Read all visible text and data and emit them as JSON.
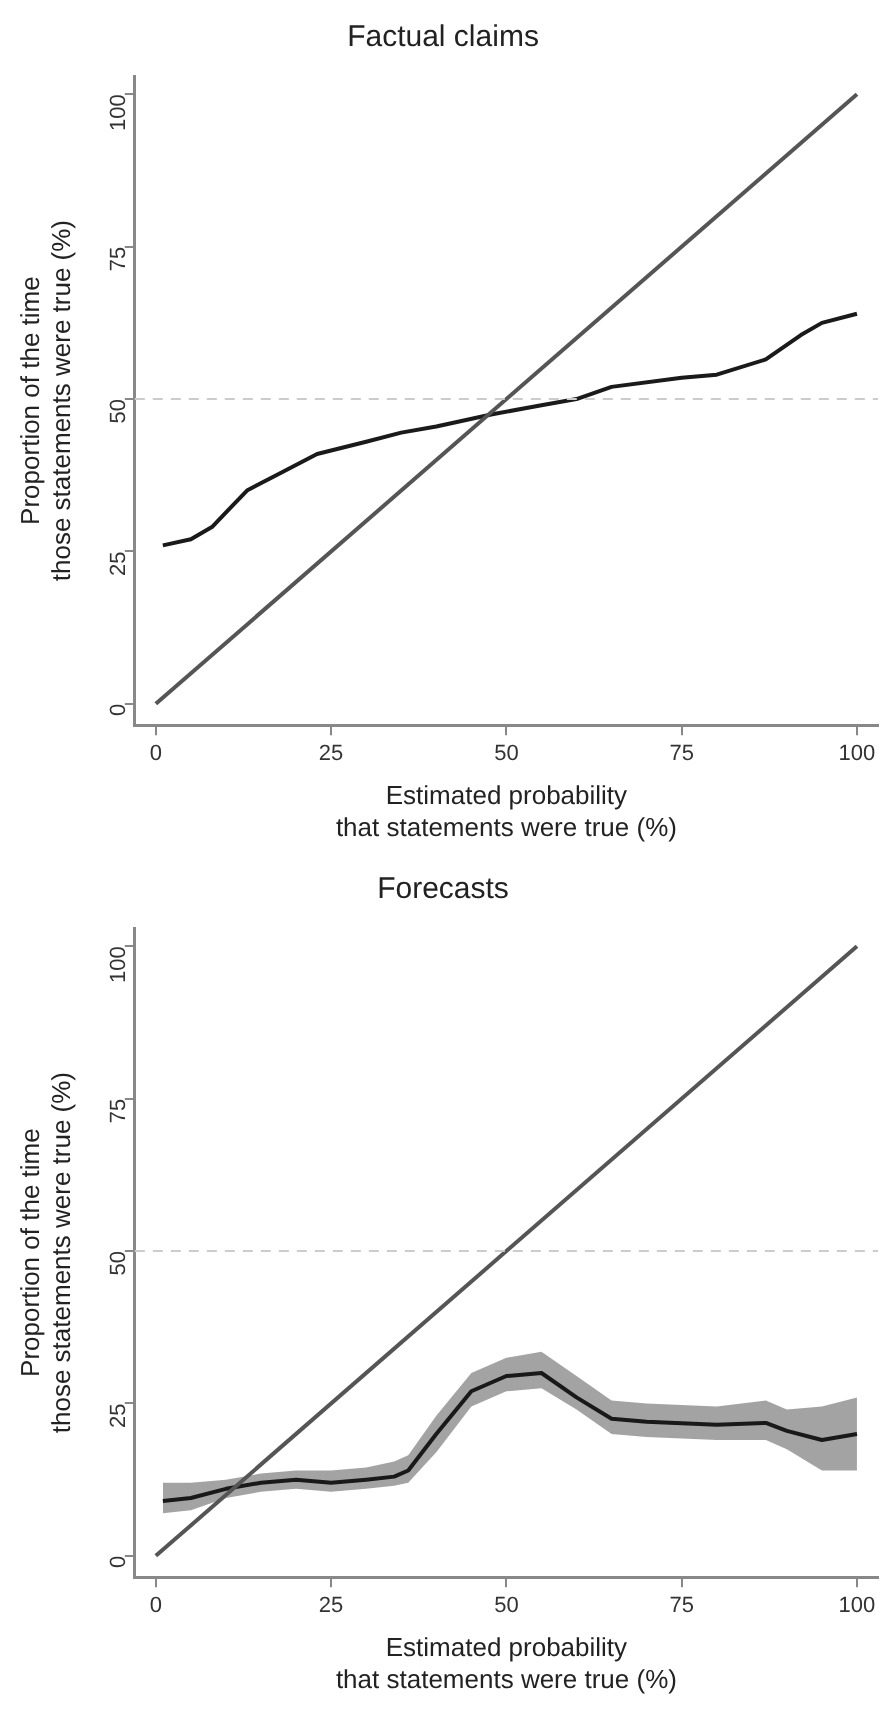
{
  "chart_data": [
    {
      "type": "line",
      "title": "Factual claims",
      "xlabel": "Estimated probability\nthat statements were true (%)",
      "ylabel": "Proportion of the time\nthose statements were true (%)",
      "xlim": [
        -3,
        103
      ],
      "ylim": [
        -3.5,
        103
      ],
      "xticks": [
        0,
        25,
        50,
        75,
        100
      ],
      "yticks": [
        0,
        25,
        50,
        75,
        100
      ],
      "grid": false,
      "legend": false,
      "ref_lines": [
        {
          "axis": "y",
          "value": 50,
          "color": "#cccccc",
          "line_style": "dashed"
        }
      ],
      "series": [
        {
          "color": "#555555",
          "x": [
            0,
            100
          ],
          "values": [
            0,
            100
          ]
        },
        {
          "color": "#1a1a1a",
          "x": [
            1,
            5,
            8,
            13,
            18,
            23,
            30,
            35,
            40,
            48,
            55,
            60,
            65,
            75,
            80,
            87,
            92,
            95,
            100
          ],
          "values": [
            26,
            27,
            29,
            35,
            38,
            41,
            43,
            44.5,
            45.5,
            47.5,
            49,
            50,
            52,
            53.5,
            54,
            56.5,
            60.5,
            62.5,
            64
          ]
        }
      ]
    },
    {
      "type": "line",
      "title": "Forecasts",
      "xlabel": "Estimated probability\nthat statements were true (%)",
      "ylabel": "Proportion of the time\nthose statements were true (%)",
      "xlim": [
        -3,
        103
      ],
      "ylim": [
        -3.5,
        103
      ],
      "xticks": [
        0,
        25,
        50,
        75,
        100
      ],
      "yticks": [
        0,
        25,
        50,
        75,
        100
      ],
      "grid": false,
      "legend": false,
      "ref_lines": [
        {
          "axis": "y",
          "value": 50,
          "color": "#cccccc",
          "line_style": "dashed"
        }
      ],
      "series": [
        {
          "color": "#555555",
          "x": [
            0,
            100
          ],
          "values": [
            0,
            100
          ]
        },
        {
          "color": "#1a1a1a",
          "x": [
            1,
            5,
            10,
            15,
            20,
            25,
            30,
            34,
            36,
            40,
            45,
            50,
            55,
            60,
            65,
            70,
            80,
            87,
            90,
            95,
            100
          ],
          "values": [
            9,
            9.5,
            11,
            12,
            12.5,
            12,
            12.5,
            13,
            14,
            20,
            27,
            29.5,
            30,
            26,
            22.5,
            22,
            21.5,
            21.8,
            20.5,
            19,
            20
          ],
          "lower": [
            7,
            7.5,
            9.5,
            10.5,
            11,
            10.5,
            11,
            11.5,
            12,
            17,
            24.5,
            27,
            27.5,
            24,
            20,
            19.5,
            19,
            19,
            17.5,
            14,
            14
          ],
          "upper": [
            12,
            12,
            12.5,
            13.5,
            14,
            14,
            14.5,
            15.5,
            16.5,
            23,
            30,
            32.5,
            33.5,
            29.5,
            25.5,
            25,
            24.5,
            25.5,
            24,
            24.5,
            26
          ]
        }
      ]
    }
  ]
}
